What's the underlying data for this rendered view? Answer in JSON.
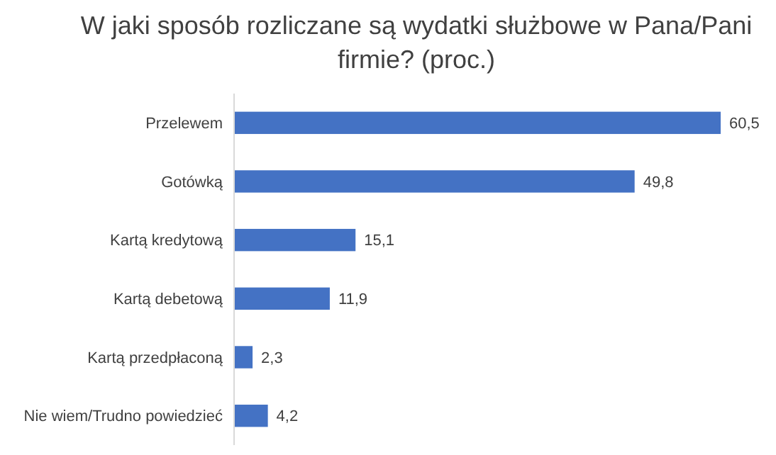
{
  "chart_data": {
    "type": "bar",
    "orientation": "horizontal",
    "title": "W jaki sposób rozliczane są wydatki służbowe w Pana/Pani firmie? (proc.)",
    "categories": [
      "Przelewem",
      "Gotówką",
      "Kartą kredytową",
      "Kartą debetową",
      "Kartą przedpłaconą",
      "Nie wiem/Trudno powiedzieć"
    ],
    "values": [
      60.5,
      49.8,
      15.1,
      11.9,
      2.3,
      4.2
    ],
    "value_labels": [
      "60,5",
      "49,8",
      "15,1",
      "11,9",
      "2,3",
      "4,2"
    ],
    "color": "#4472c4"
  }
}
